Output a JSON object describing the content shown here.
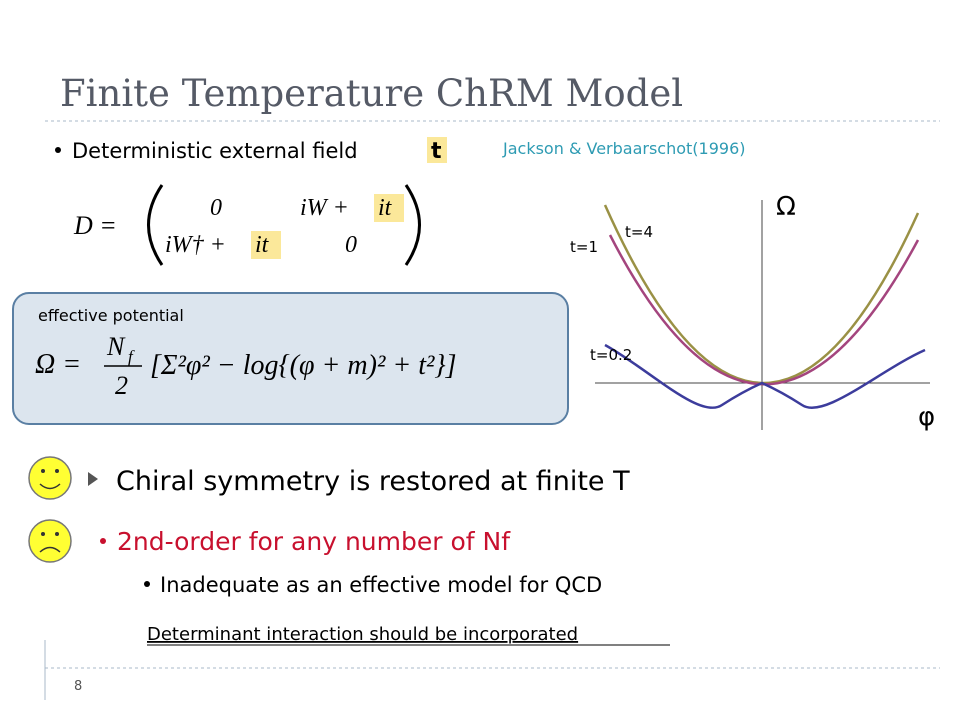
{
  "header": {
    "title": "Finite Temperature ChRM Model"
  },
  "intro": {
    "bullet": "Deterministic external field",
    "variable": "t",
    "citation": "Jackson & Verbaarschot(1996)"
  },
  "matrix": {
    "lhs": "D =",
    "top_left": "0",
    "top_right_a": "iW +",
    "top_right_b": "it",
    "bottom_left_a": "iW† +",
    "bottom_left_b": "it",
    "bottom_right": "0"
  },
  "potential": {
    "label": "effective potential",
    "lhs": "Ω =",
    "numerator": "N",
    "numerator_sub": "f",
    "denominator": "2",
    "bracket": "[Σ²φ² − log{(φ + m)² + t²}]"
  },
  "plot": {
    "y_label": "Ω",
    "x_label": "φ",
    "curves": [
      "t=4",
      "t=1",
      "t=0.2"
    ]
  },
  "points": {
    "main": "Chiral symmetry is restored at finite T",
    "negative": "2nd-order for any number of Nf",
    "sub": "Inadequate as an effective model for QCD",
    "note": "Determinant interaction should be incorporated"
  },
  "footer": {
    "page": "8"
  }
}
